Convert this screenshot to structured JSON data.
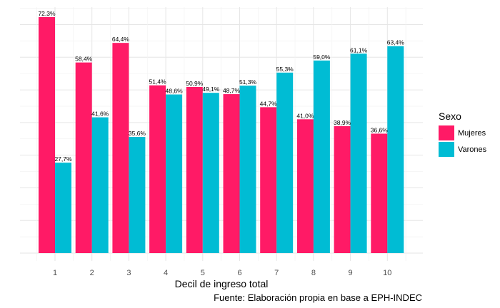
{
  "chart_data": {
    "type": "bar",
    "categories": [
      "1",
      "2",
      "3",
      "4",
      "5",
      "6",
      "7",
      "8",
      "9",
      "10"
    ],
    "series": [
      {
        "name": "Mujeres",
        "color": "#ff1a66",
        "values": [
          72.3,
          58.4,
          64.4,
          51.4,
          50.9,
          48.7,
          44.7,
          41.0,
          38.9,
          36.6
        ],
        "labels": [
          "72,3%",
          "58,4%",
          "64,4%",
          "51,4%",
          "50,9%",
          "48,7%",
          "44,7%",
          "41,0%",
          "38,9%",
          "36,6%"
        ]
      },
      {
        "name": "Varones",
        "color": "#00bcd4",
        "values": [
          27.7,
          41.6,
          35.6,
          48.6,
          49.1,
          51.3,
          55.3,
          59.0,
          61.1,
          63.4
        ],
        "labels": [
          "27,7%",
          "41,6%",
          "35,6%",
          "48,6%",
          "49,1%",
          "51,3%",
          "55,3%",
          "59,0%",
          "61,1%",
          "63,4%"
        ]
      }
    ],
    "xlabel": "Decil de ingreso total",
    "ylabel": "",
    "ylim": [
      0,
      75
    ],
    "grid": true,
    "legend_title": "Sexo",
    "legend_position": "right",
    "caption": "Fuente: Elaboración propia en base a EPH-INDEC"
  }
}
